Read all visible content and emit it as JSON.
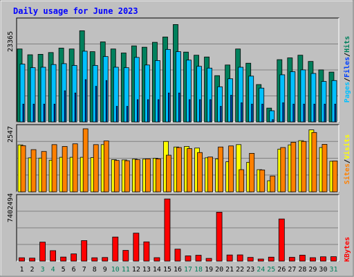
{
  "title": "Daily usage for June 2023",
  "colors": {
    "background": "#c0c0c0",
    "title": "#0000ff",
    "hits": "#00805c",
    "files": "#00c0ff",
    "pages": "#0040ff",
    "visits": "#ffff00",
    "sites": "#ff8000",
    "kbytes": "#ff0000",
    "weekend_label": "#00805c"
  },
  "legend": {
    "top": {
      "pages": "Pages",
      "files": "Files",
      "hits": "Hits",
      "sep": "/"
    },
    "middle": {
      "sites": "Sites",
      "visits": "Visits",
      "sep": "/"
    },
    "bottom": {
      "kbytes": "KBytes"
    }
  },
  "chart_data": {
    "type": "bar",
    "days": [
      "1",
      "2",
      "3",
      "4",
      "5",
      "6",
      "7",
      "8",
      "9",
      "10",
      "11",
      "12",
      "13",
      "14",
      "15",
      "16",
      "17",
      "18",
      "19",
      "20",
      "21",
      "22",
      "23",
      "24",
      "25",
      "26",
      "27",
      "28",
      "29",
      "30",
      "31"
    ],
    "weekend_days": [
      "3",
      "4",
      "10",
      "11",
      "17",
      "18",
      "24",
      "25",
      "31"
    ],
    "panels": [
      {
        "id": "hits-files-pages",
        "max_label": "23365",
        "ymax": 23365,
        "series": [
          {
            "name": "Hits",
            "values": [
              16400,
              15100,
              15200,
              15600,
              16600,
              16400,
              20500,
              15800,
              18000,
              16400,
              15500,
              17100,
              16800,
              17900,
              19100,
              21900,
              15700,
              15000,
              14600,
              10400,
              12800,
              16400,
              13200,
              8400,
              3100,
              14000,
              14400,
              15000,
              13600,
              11700,
              11200
            ]
          },
          {
            "name": "Files",
            "values": [
              13000,
              12200,
              12300,
              12900,
              13100,
              12700,
              15900,
              12700,
              14700,
              12300,
              12200,
              14500,
              12800,
              13800,
              16300,
              15800,
              13900,
              12500,
              12100,
              7900,
              9700,
              12300,
              10300,
              7600,
              2500,
              10600,
              11300,
              11700,
              10900,
              9100,
              9300
            ]
          },
          {
            "name": "Pages",
            "values": [
              4000,
              4000,
              4000,
              4000,
              7000,
              6500,
              9500,
              8000,
              9300,
              3500,
              3500,
              5000,
              5000,
              5000,
              6500,
              6500,
              5000,
              5000,
              5000,
              3500,
              6000,
              4300,
              4000,
              4000,
              500,
              4300,
              4000,
              4000,
              4000,
              4000,
              4000
            ]
          }
        ]
      },
      {
        "id": "sites-visits",
        "max_label": "2547",
        "ymax": 2547,
        "series": [
          {
            "name": "Visits",
            "values": [
              1780,
              1290,
              1280,
              1200,
              1310,
              1310,
              1310,
              1300,
              1790,
              1220,
              1210,
              1240,
              1240,
              1270,
              1910,
              1700,
              1720,
              1660,
              1290,
              1250,
              1140,
              1790,
              1120,
              840,
              420,
              1620,
              1780,
              1940,
              2350,
              1680,
              1160
            ]
          },
          {
            "name": "Sites",
            "values": [
              1750,
              1600,
              1530,
              1790,
              1720,
              1820,
              2390,
              1790,
              1930,
              1190,
              1180,
              1220,
              1250,
              1250,
              1390,
              1680,
              1640,
              1490,
              1320,
              1700,
              1740,
              840,
              1460,
              830,
              600,
              1680,
              1880,
              1910,
              2250,
              1800,
              1170
            ]
          }
        ]
      },
      {
        "id": "kbytes",
        "max_label": "7402494",
        "ymax": 7402494,
        "series": [
          {
            "name": "KBytes",
            "values": [
              370000,
              330000,
              2110000,
              1160000,
              450000,
              800000,
              2280000,
              370000,
              400000,
              2680000,
              1190000,
              3110000,
              2140000,
              380000,
              6920000,
              1330000,
              580000,
              650000,
              300000,
              5440000,
              680000,
              690000,
              410000,
              230000,
              440000,
              4690000,
              420000,
              660000,
              380000,
              480000,
              490000
            ]
          }
        ]
      }
    ]
  }
}
